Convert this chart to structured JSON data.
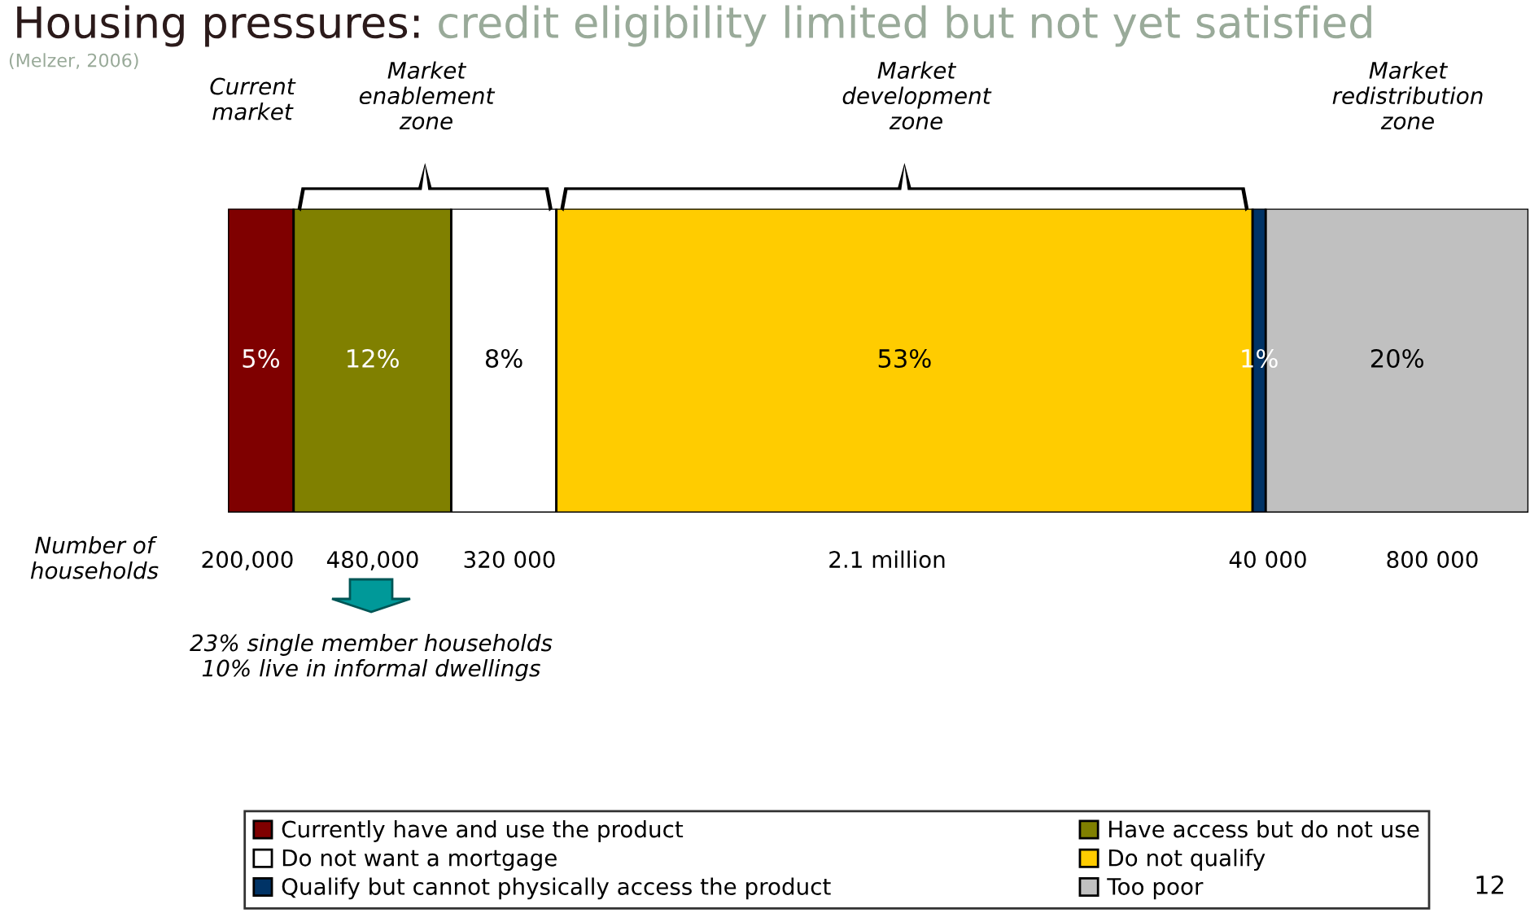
{
  "chart_data": {
    "type": "bar",
    "orientation": "horizontal",
    "stacked": true,
    "title": "Housing pressures:",
    "subtitle": "credit eligibility limited but not yet satisfied",
    "categories": [
      null
    ],
    "legend": "bottom",
    "grid": false,
    "series": [
      {
        "name": "Currently have and use the product",
        "color": "#7f0000",
        "values": [
          5
        ],
        "value_labels": [
          "5%"
        ]
      },
      {
        "name": "Have access but do not use",
        "color": "#808000",
        "values": [
          12
        ],
        "value_labels": [
          "12%"
        ]
      },
      {
        "name": "Do not want a mortgage",
        "color": "#ffffff",
        "values": [
          8
        ],
        "value_labels": [
          "8%"
        ]
      },
      {
        "name": "Do not qualify",
        "color": "#ffcc00",
        "values": [
          53
        ],
        "value_labels": [
          "53%"
        ]
      },
      {
        "name": "Qualify but cannot physically access the product",
        "color": "#003366",
        "values": [
          1
        ],
        "value_labels": [
          "1%"
        ]
      },
      {
        "name": "Too poor",
        "color": "#c0c0c0",
        "values": [
          20
        ],
        "value_labels": [
          "20%"
        ]
      }
    ],
    "annotations": [
      "(Melzer, 2006)",
      "Number of\nhouseholds",
      "12",
      "Current\nmarket",
      "Market\nenablement\nzone",
      "Market\ndevelopment\nzone",
      "Market\nredistribution\nzone",
      "200,000",
      "480,000",
      "320 000",
      "2.1 million",
      "40 000",
      "800 000",
      "23% single member households\n10% live in informal dwellings"
    ]
  }
}
